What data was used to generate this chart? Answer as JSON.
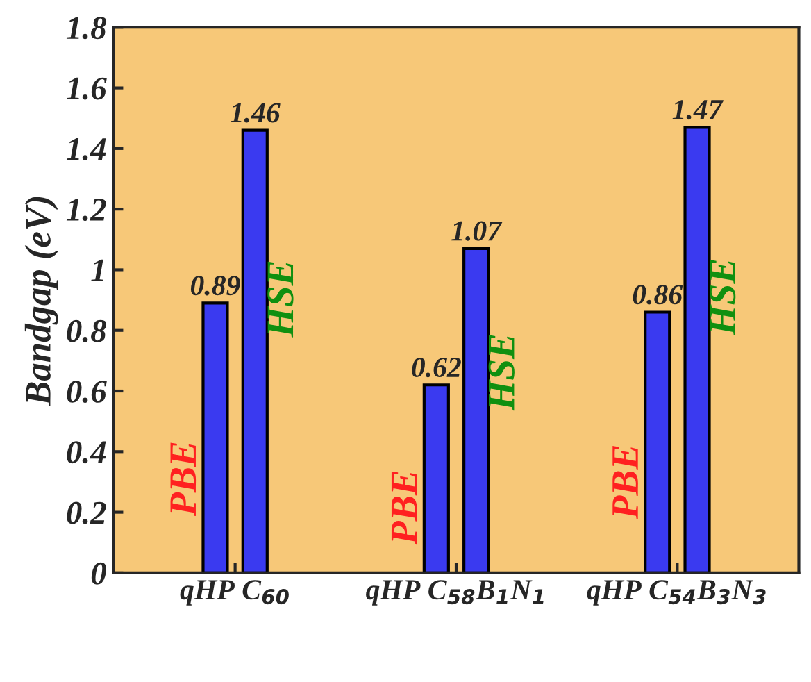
{
  "chart_data": {
    "type": "bar",
    "ylabel": "Bandgap (eV)",
    "categories": [
      "qHP C$_{60}$",
      "qHP C$_{58}$B$_{1}$N$_{1}$",
      "qHP C$_{54}$B$_{3}$N$_{3}$"
    ],
    "series": [
      {
        "name": "PBE",
        "color": "#3a3af0",
        "values": [
          0.89,
          0.62,
          0.86
        ]
      },
      {
        "name": "HSE",
        "color": "#3a3af0",
        "values": [
          1.46,
          1.07,
          1.47
        ]
      }
    ],
    "ylim": [
      0,
      1.8
    ],
    "yticks": [
      0,
      0.2,
      0.4,
      0.6,
      0.8,
      1,
      1.2,
      1.4,
      1.6,
      1.8
    ],
    "data_labels": true,
    "grid": false,
    "legend": false
  }
}
